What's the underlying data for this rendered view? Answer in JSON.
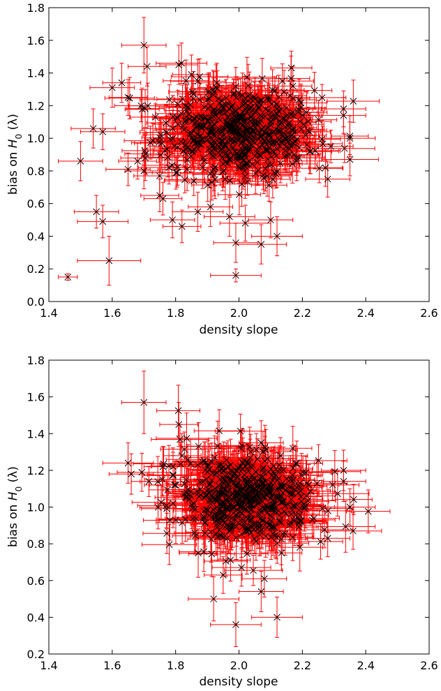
{
  "chart_data": [
    {
      "type": "scatter",
      "title": "",
      "xlabel": "density slope",
      "ylabel": "bias on H_0 (λ)",
      "ylabel_parts": {
        "prefix": "bias on ",
        "symbol": "H",
        "subscript": "0",
        "suffix": " (λ)"
      },
      "xlim": [
        1.4,
        2.6
      ],
      "ylim": [
        0.0,
        1.8
      ],
      "xticks": [
        "1.4",
        "1.6",
        "1.8",
        "2.0",
        "2.2",
        "2.4",
        "2.6"
      ],
      "yticks": [
        "0.0",
        "0.2",
        "0.4",
        "0.6",
        "0.8",
        "1.0",
        "1.2",
        "1.4",
        "1.6",
        "1.8"
      ],
      "grid": false,
      "marker": "x",
      "marker_color": "#000000",
      "errorbar_color": "#ff0000",
      "cloud": {
        "center": [
          2.0,
          1.04
        ],
        "spread": [
          0.12,
          0.14
        ]
      },
      "points": [
        {
          "x": 1.7,
          "y": 1.57,
          "xerr": 0.07,
          "yerr": 0.17
        },
        {
          "x": 1.71,
          "y": 1.44,
          "xerr": 0.06,
          "yerr": 0.12
        },
        {
          "x": 1.81,
          "y": 1.45,
          "xerr": 0.06,
          "yerr": 0.12
        },
        {
          "x": 1.6,
          "y": 1.31,
          "xerr": 0.07,
          "yerr": 0.12
        },
        {
          "x": 1.63,
          "y": 1.34,
          "xerr": 0.06,
          "yerr": 0.12
        },
        {
          "x": 1.65,
          "y": 1.25,
          "xerr": 0.06,
          "yerr": 0.11
        },
        {
          "x": 1.54,
          "y": 1.06,
          "xerr": 0.07,
          "yerr": 0.12
        },
        {
          "x": 1.57,
          "y": 1.04,
          "xerr": 0.07,
          "yerr": 0.11
        },
        {
          "x": 1.5,
          "y": 0.86,
          "xerr": 0.07,
          "yerr": 0.12
        },
        {
          "x": 1.55,
          "y": 0.55,
          "xerr": 0.07,
          "yerr": 0.1
        },
        {
          "x": 1.57,
          "y": 0.49,
          "xerr": 0.08,
          "yerr": 0.1
        },
        {
          "x": 1.59,
          "y": 0.25,
          "xerr": 0.1,
          "yerr": 0.15
        },
        {
          "x": 1.46,
          "y": 0.15,
          "xerr": 0.03,
          "yerr": 0.02
        },
        {
          "x": 1.65,
          "y": 0.81,
          "xerr": 0.07,
          "yerr": 0.1
        },
        {
          "x": 1.68,
          "y": 0.86,
          "xerr": 0.06,
          "yerr": 0.11
        },
        {
          "x": 1.7,
          "y": 0.8,
          "xerr": 0.06,
          "yerr": 0.11
        },
        {
          "x": 1.75,
          "y": 0.65,
          "xerr": 0.06,
          "yerr": 0.1
        },
        {
          "x": 1.76,
          "y": 0.63,
          "xerr": 0.06,
          "yerr": 0.1
        },
        {
          "x": 1.79,
          "y": 0.5,
          "xerr": 0.07,
          "yerr": 0.11
        },
        {
          "x": 1.82,
          "y": 0.46,
          "xerr": 0.06,
          "yerr": 0.1
        },
        {
          "x": 1.87,
          "y": 0.55,
          "xerr": 0.08,
          "yerr": 0.12
        },
        {
          "x": 1.91,
          "y": 0.58,
          "xerr": 0.07,
          "yerr": 0.12
        },
        {
          "x": 1.97,
          "y": 0.52,
          "xerr": 0.08,
          "yerr": 0.12
        },
        {
          "x": 1.99,
          "y": 0.36,
          "xerr": 0.07,
          "yerr": 0.12
        },
        {
          "x": 2.07,
          "y": 0.35,
          "xerr": 0.08,
          "yerr": 0.12
        },
        {
          "x": 2.12,
          "y": 0.4,
          "xerr": 0.08,
          "yerr": 0.12
        },
        {
          "x": 1.99,
          "y": 0.16,
          "xerr": 0.08,
          "yerr": 0.04
        },
        {
          "x": 2.02,
          "y": 0.48,
          "xerr": 0.08,
          "yerr": 0.11
        },
        {
          "x": 2.1,
          "y": 0.5,
          "xerr": 0.07,
          "yerr": 0.11
        },
        {
          "x": 2.29,
          "y": 0.95,
          "xerr": 0.07,
          "yerr": 0.1
        },
        {
          "x": 2.33,
          "y": 1.14,
          "xerr": 0.07,
          "yerr": 0.11
        },
        {
          "x": 2.33,
          "y": 1.18,
          "xerr": 0.07,
          "yerr": 0.11
        },
        {
          "x": 2.35,
          "y": 1.0,
          "xerr": 0.08,
          "yerr": 0.1
        },
        {
          "x": 2.35,
          "y": 0.87,
          "xerr": 0.09,
          "yerr": 0.1
        },
        {
          "x": 2.28,
          "y": 0.75,
          "xerr": 0.07,
          "yerr": 0.11
        },
        {
          "x": 2.17,
          "y": 1.32,
          "xerr": 0.06,
          "yerr": 0.12
        },
        {
          "x": 1.93,
          "y": 1.34,
          "xerr": 0.06,
          "yerr": 0.12
        },
        {
          "x": 1.85,
          "y": 1.39,
          "xerr": 0.06,
          "yerr": 0.12
        }
      ]
    },
    {
      "type": "scatter",
      "title": "",
      "xlabel": "density slope",
      "ylabel": "bias on H_0 (λ)",
      "ylabel_parts": {
        "prefix": "bias on ",
        "symbol": "H",
        "subscript": "0",
        "suffix": " (λ)"
      },
      "xlim": [
        1.4,
        2.6
      ],
      "ylim": [
        0.2,
        1.8
      ],
      "xticks": [
        "1.4",
        "1.6",
        "1.8",
        "2.0",
        "2.2",
        "2.4",
        "2.6"
      ],
      "yticks": [
        "0.2",
        "0.4",
        "0.6",
        "0.8",
        "1.0",
        "1.2",
        "1.4",
        "1.6",
        "1.8"
      ],
      "grid": false,
      "marker": "x",
      "marker_color": "#000000",
      "errorbar_color": "#ff0000",
      "cloud": {
        "center": [
          2.02,
          1.04
        ],
        "spread": [
          0.11,
          0.12
        ]
      },
      "points": [
        {
          "x": 1.7,
          "y": 1.57,
          "xerr": 0.07,
          "yerr": 0.17
        },
        {
          "x": 1.81,
          "y": 1.45,
          "xerr": 0.06,
          "yerr": 0.12
        },
        {
          "x": 1.65,
          "y": 1.24,
          "xerr": 0.08,
          "yerr": 0.11
        },
        {
          "x": 1.66,
          "y": 1.18,
          "xerr": 0.07,
          "yerr": 0.11
        },
        {
          "x": 1.76,
          "y": 1.22,
          "xerr": 0.06,
          "yerr": 0.11
        },
        {
          "x": 1.82,
          "y": 1.28,
          "xerr": 0.06,
          "yerr": 0.12
        },
        {
          "x": 1.86,
          "y": 0.86,
          "xerr": 0.06,
          "yerr": 0.11
        },
        {
          "x": 1.92,
          "y": 0.5,
          "xerr": 0.08,
          "yerr": 0.12
        },
        {
          "x": 1.99,
          "y": 0.36,
          "xerr": 0.08,
          "yerr": 0.12
        },
        {
          "x": 2.12,
          "y": 0.4,
          "xerr": 0.08,
          "yerr": 0.11
        },
        {
          "x": 2.07,
          "y": 0.54,
          "xerr": 0.07,
          "yerr": 0.11
        },
        {
          "x": 2.08,
          "y": 0.61,
          "xerr": 0.07,
          "yerr": 0.1
        },
        {
          "x": 1.95,
          "y": 0.63,
          "xerr": 0.06,
          "yerr": 0.1
        },
        {
          "x": 2.28,
          "y": 0.83,
          "xerr": 0.07,
          "yerr": 0.1
        },
        {
          "x": 2.33,
          "y": 1.14,
          "xerr": 0.07,
          "yerr": 0.11
        },
        {
          "x": 2.33,
          "y": 1.2,
          "xerr": 0.07,
          "yerr": 0.11
        },
        {
          "x": 2.35,
          "y": 1.0,
          "xerr": 0.08,
          "yerr": 0.1
        },
        {
          "x": 2.36,
          "y": 0.87,
          "xerr": 0.09,
          "yerr": 0.1
        },
        {
          "x": 2.17,
          "y": 1.32,
          "xerr": 0.06,
          "yerr": 0.12
        },
        {
          "x": 2.07,
          "y": 1.35,
          "xerr": 0.07,
          "yerr": 0.12
        }
      ]
    }
  ]
}
